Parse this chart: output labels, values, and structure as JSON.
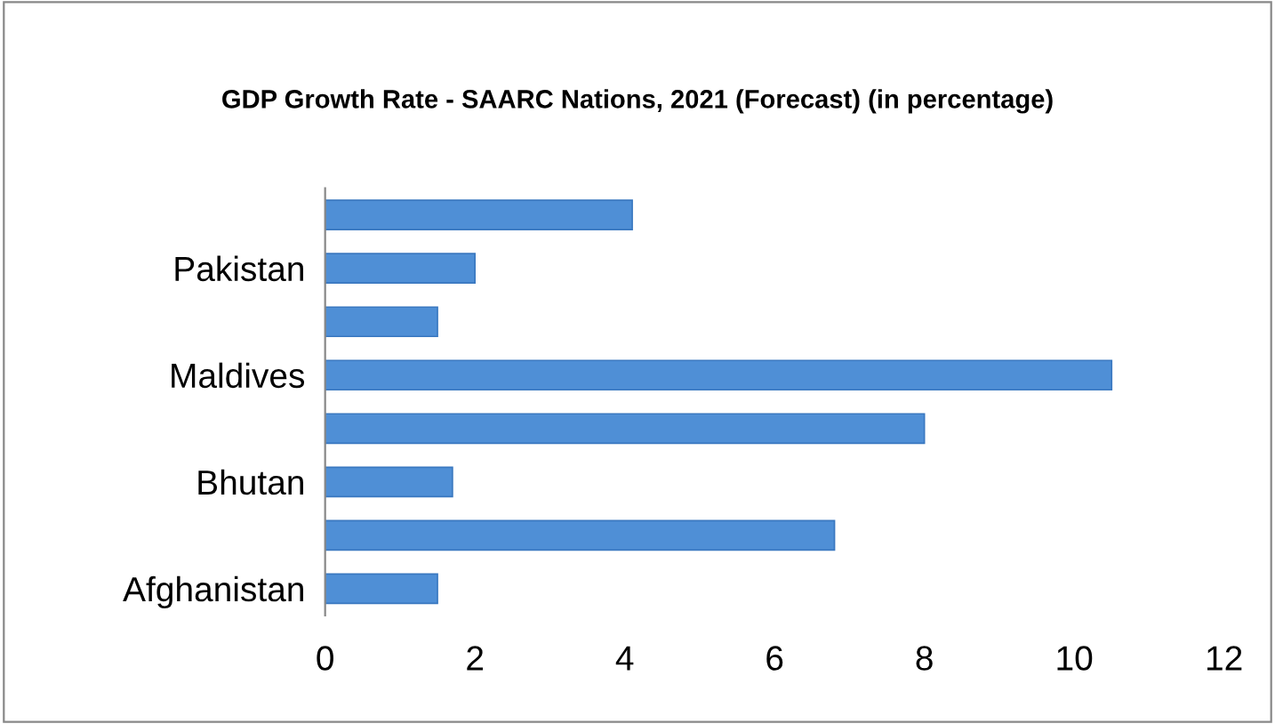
{
  "chart_data": {
    "type": "bar",
    "orientation": "horizontal",
    "title": "GDP Growth Rate - SAARC Nations, 2021 (Forecast) (in percentage)",
    "categories": [
      null,
      "Pakistan",
      null,
      "Maldives",
      null,
      "Bhutan",
      null,
      "Afghanistan"
    ],
    "values": [
      4.1,
      2.0,
      1.5,
      10.5,
      8.0,
      1.7,
      6.8,
      1.5
    ],
    "color": "#4f8fd6",
    "xlim": [
      0,
      12
    ],
    "xticks": [
      0,
      2,
      4,
      6,
      8,
      10,
      12
    ],
    "grid": false,
    "legend": false
  }
}
